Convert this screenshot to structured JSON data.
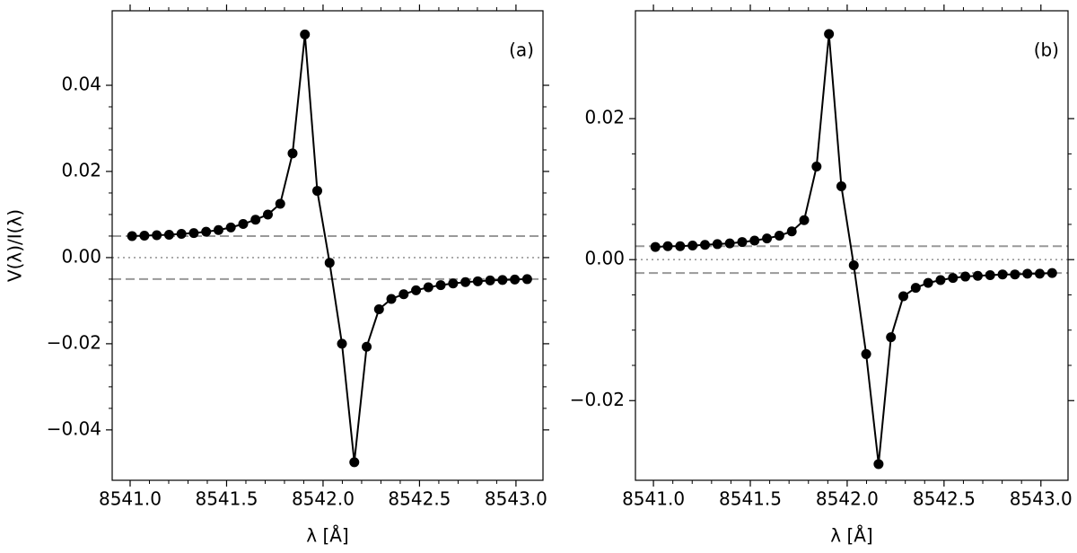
{
  "chart_data": [
    {
      "type": "line",
      "annotation": "(a)",
      "xlabel": "λ [Å]",
      "ylabel": "V(λ)/I(λ)",
      "x": [
        8541.01,
        8541.074,
        8541.138,
        8541.202,
        8541.266,
        8541.33,
        8541.394,
        8541.458,
        8541.522,
        8541.586,
        8541.65,
        8541.714,
        8541.778,
        8541.842,
        8541.906,
        8541.97,
        8542.034,
        8542.098,
        8542.162,
        8542.226,
        8542.29,
        8542.354,
        8542.418,
        8542.482,
        8542.546,
        8542.61,
        8542.674,
        8542.738,
        8542.802,
        8542.866,
        8542.93,
        8542.994,
        8543.058
      ],
      "values": [
        0.005,
        0.0051,
        0.0052,
        0.0053,
        0.0055,
        0.0057,
        0.006,
        0.0064,
        0.007,
        0.0078,
        0.0088,
        0.01,
        0.0125,
        0.0242,
        0.0518,
        0.0155,
        -0.0012,
        -0.02,
        -0.0475,
        -0.0207,
        -0.012,
        -0.0096,
        -0.0085,
        -0.0076,
        -0.0069,
        -0.0064,
        -0.006,
        -0.0057,
        -0.0055,
        -0.0053,
        -0.0052,
        -0.0051,
        -0.005
      ],
      "color": "#000000",
      "xlim": [
        8540.907,
        8543.14
      ],
      "ylim": [
        -0.0517,
        0.0573
      ],
      "xticks": [
        {
          "value": 8541.0,
          "label": "8541.0"
        },
        8541.5,
        {
          "value": 8542.0,
          "label": "8542.0"
        },
        8542.5,
        {
          "value": 8543.0,
          "label": "8543.0"
        }
      ],
      "yticks": [
        {
          "value": -0.04,
          "label": "−0.04"
        },
        {
          "value": -0.02,
          "label": "−0.02"
        },
        {
          "value": 0,
          "label": "0.00"
        },
        0.02,
        0.04
      ],
      "hlines": [
        {
          "value": 0.005,
          "style": "dashed"
        },
        {
          "value": 0,
          "style": "dotted"
        },
        {
          "value": -0.005,
          "style": "dashed"
        }
      ]
    },
    {
      "type": "line",
      "annotation": "(b)",
      "xlabel": "λ [Å]",
      "x": [
        8541.01,
        8541.074,
        8541.138,
        8541.202,
        8541.266,
        8541.33,
        8541.394,
        8541.458,
        8541.522,
        8541.586,
        8541.65,
        8541.714,
        8541.778,
        8541.842,
        8541.906,
        8541.97,
        8542.034,
        8542.098,
        8542.162,
        8542.226,
        8542.29,
        8542.354,
        8542.418,
        8542.482,
        8542.546,
        8542.61,
        8542.674,
        8542.738,
        8542.802,
        8542.866,
        8542.93,
        8542.994,
        8543.058
      ],
      "values": [
        0.0018,
        0.0019,
        0.0019,
        0.002,
        0.0021,
        0.0022,
        0.0023,
        0.0025,
        0.0027,
        0.003,
        0.0034,
        0.004,
        0.0056,
        0.0132,
        0.032,
        0.0104,
        -0.0008,
        -0.0134,
        -0.029,
        -0.011,
        -0.0052,
        -0.004,
        -0.0033,
        -0.0029,
        -0.0026,
        -0.0024,
        -0.0023,
        -0.0022,
        -0.0021,
        -0.0021,
        -0.002,
        -0.002,
        -0.0019
      ],
      "color": "#000000",
      "xlim": [
        8540.907,
        8543.14
      ],
      "ylim": [
        -0.0313,
        0.0353
      ],
      "xticks": [
        {
          "value": 8541.0,
          "label": "8541.0"
        },
        8541.5,
        {
          "value": 8542.0,
          "label": "8542.0"
        },
        8542.5,
        {
          "value": 8543.0,
          "label": "8543.0"
        }
      ],
      "yticks": [
        {
          "value": -0.02,
          "label": "−0.02"
        },
        {
          "value": 0,
          "label": "0.00"
        },
        0.02
      ],
      "hlines": [
        {
          "value": 0.0019,
          "style": "dashed"
        },
        {
          "value": 0,
          "style": "dotted"
        },
        {
          "value": -0.0019,
          "style": "dashed"
        }
      ]
    }
  ]
}
